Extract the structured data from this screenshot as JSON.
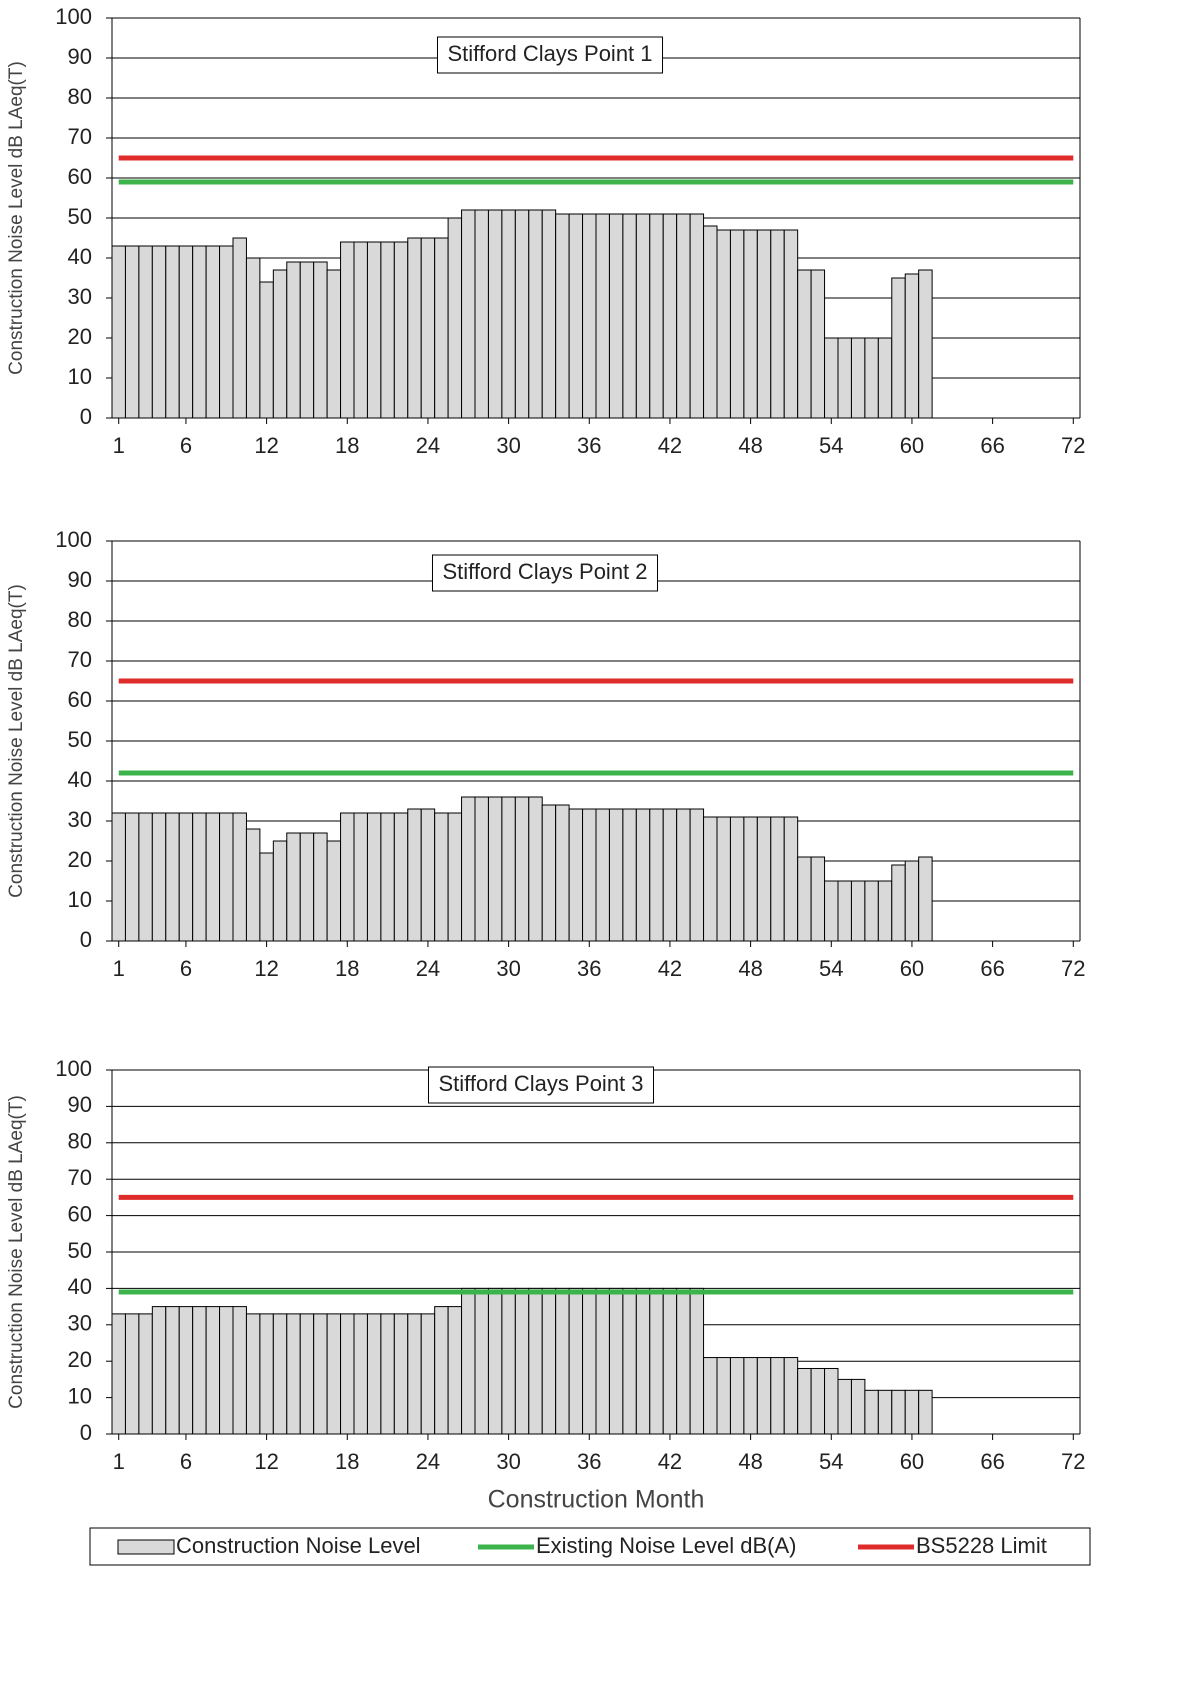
{
  "chart_data": [
    {
      "type": "bar",
      "title": "Stifford Clays Point 1",
      "y_label": "Construction Noise Level dB LAeq(T)",
      "x": [
        1,
        2,
        3,
        4,
        5,
        6,
        7,
        8,
        9,
        10,
        11,
        12,
        13,
        14,
        15,
        16,
        17,
        18,
        19,
        20,
        21,
        22,
        23,
        24,
        25,
        26,
        27,
        28,
        29,
        30,
        31,
        32,
        33,
        34,
        35,
        36,
        37,
        38,
        39,
        40,
        41,
        42,
        43,
        44,
        45,
        46,
        47,
        48,
        49,
        50,
        51,
        52,
        53,
        54,
        55,
        56,
        57,
        58,
        59,
        60,
        61,
        62,
        63,
        64,
        65,
        66,
        67,
        68,
        69,
        70,
        71,
        72
      ],
      "xlim": [
        0.5,
        72.5
      ],
      "xticks": [
        1,
        6,
        12,
        18,
        24,
        30,
        36,
        42,
        48,
        54,
        60,
        66,
        72
      ],
      "ylim": [
        0,
        100
      ],
      "yticks": [
        0,
        10,
        20,
        30,
        40,
        50,
        60,
        70,
        80,
        90,
        100
      ],
      "grid": true,
      "series": [
        {
          "type": "bar",
          "color": "#d9d9d9",
          "values": [
            43,
            43,
            43,
            43,
            43,
            43,
            43,
            43,
            43,
            45,
            40,
            34,
            37,
            39,
            39,
            39,
            37,
            44,
            44,
            44,
            44,
            44,
            45,
            45,
            45,
            50,
            52,
            52,
            52,
            52,
            52,
            52,
            52,
            51,
            51,
            51,
            51,
            51,
            51,
            51,
            51,
            51,
            51,
            51,
            48,
            47,
            47,
            47,
            47,
            47,
            47,
            37,
            37,
            20,
            20,
            20,
            20,
            20,
            35,
            36,
            37,
            0,
            0,
            0,
            0,
            0,
            0,
            0,
            0,
            0,
            0,
            0
          ]
        },
        {
          "type": "line",
          "color": "#3cb44b",
          "x": [
            1,
            72
          ],
          "values": [
            59,
            59
          ]
        },
        {
          "type": "line",
          "color": "#e02b2b",
          "x": [
            1,
            72
          ],
          "values": [
            65,
            65
          ]
        }
      ]
    },
    {
      "type": "bar",
      "title": "Stifford Clays Point 2",
      "y_label": "Construction Noise Level dB LAeq(T)",
      "x": [
        1,
        2,
        3,
        4,
        5,
        6,
        7,
        8,
        9,
        10,
        11,
        12,
        13,
        14,
        15,
        16,
        17,
        18,
        19,
        20,
        21,
        22,
        23,
        24,
        25,
        26,
        27,
        28,
        29,
        30,
        31,
        32,
        33,
        34,
        35,
        36,
        37,
        38,
        39,
        40,
        41,
        42,
        43,
        44,
        45,
        46,
        47,
        48,
        49,
        50,
        51,
        52,
        53,
        54,
        55,
        56,
        57,
        58,
        59,
        60,
        61,
        62,
        63,
        64,
        65,
        66,
        67,
        68,
        69,
        70,
        71,
        72
      ],
      "xlim": [
        0.5,
        72.5
      ],
      "xticks": [
        1,
        6,
        12,
        18,
        24,
        30,
        36,
        42,
        48,
        54,
        60,
        66,
        72
      ],
      "ylim": [
        0,
        100
      ],
      "yticks": [
        0,
        10,
        20,
        30,
        40,
        50,
        60,
        70,
        80,
        90,
        100
      ],
      "grid": true,
      "series": [
        {
          "type": "bar",
          "color": "#d9d9d9",
          "values": [
            32,
            32,
            32,
            32,
            32,
            32,
            32,
            32,
            32,
            32,
            28,
            22,
            25,
            27,
            27,
            27,
            25,
            32,
            32,
            32,
            32,
            32,
            33,
            33,
            32,
            32,
            36,
            36,
            36,
            36,
            36,
            36,
            34,
            34,
            33,
            33,
            33,
            33,
            33,
            33,
            33,
            33,
            33,
            33,
            31,
            31,
            31,
            31,
            31,
            31,
            31,
            21,
            21,
            15,
            15,
            15,
            15,
            15,
            19,
            20,
            21,
            0,
            0,
            0,
            0,
            0,
            0,
            0,
            0,
            0,
            0,
            0
          ]
        },
        {
          "type": "line",
          "color": "#3cb44b",
          "x": [
            1,
            72
          ],
          "values": [
            42,
            42
          ]
        },
        {
          "type": "line",
          "color": "#e02b2b",
          "x": [
            1,
            72
          ],
          "values": [
            65,
            65
          ]
        }
      ]
    },
    {
      "type": "bar",
      "title": "Stifford Clays Point 3",
      "y_label": "Construction Noise Level dB LAeq(T)",
      "x_label": "Construction Month",
      "x": [
        1,
        2,
        3,
        4,
        5,
        6,
        7,
        8,
        9,
        10,
        11,
        12,
        13,
        14,
        15,
        16,
        17,
        18,
        19,
        20,
        21,
        22,
        23,
        24,
        25,
        26,
        27,
        28,
        29,
        30,
        31,
        32,
        33,
        34,
        35,
        36,
        37,
        38,
        39,
        40,
        41,
        42,
        43,
        44,
        45,
        46,
        47,
        48,
        49,
        50,
        51,
        52,
        53,
        54,
        55,
        56,
        57,
        58,
        59,
        60,
        61,
        62,
        63,
        64,
        65,
        66,
        67,
        68,
        69,
        70,
        71,
        72
      ],
      "xlim": [
        0.5,
        72.5
      ],
      "xticks": [
        1,
        6,
        12,
        18,
        24,
        30,
        36,
        42,
        48,
        54,
        60,
        66,
        72
      ],
      "ylim": [
        0,
        100
      ],
      "yticks": [
        0,
        10,
        20,
        30,
        40,
        50,
        60,
        70,
        80,
        90,
        100
      ],
      "grid": true,
      "legend": "below",
      "series": [
        {
          "name": "Construction Noise Level",
          "type": "bar",
          "color": "#d9d9d9",
          "values": [
            33,
            33,
            33,
            35,
            35,
            35,
            35,
            35,
            35,
            35,
            33,
            33,
            33,
            33,
            33,
            33,
            33,
            33,
            33,
            33,
            33,
            33,
            33,
            33,
            35,
            35,
            40,
            40,
            40,
            40,
            40,
            40,
            40,
            40,
            40,
            40,
            40,
            40,
            40,
            40,
            40,
            40,
            40,
            40,
            21,
            21,
            21,
            21,
            21,
            21,
            21,
            18,
            18,
            18,
            15,
            15,
            12,
            12,
            12,
            12,
            12,
            0,
            0,
            0,
            0,
            0,
            0,
            0,
            0,
            0,
            0,
            0
          ]
        },
        {
          "name": "Existing Noise Level dB(A)",
          "type": "line",
          "color": "#3cb44b",
          "x": [
            1,
            72
          ],
          "values": [
            39,
            39
          ]
        },
        {
          "name": "BS5228 Limit",
          "type": "line",
          "color": "#e02b2b",
          "x": [
            1,
            72
          ],
          "values": [
            65,
            65
          ]
        }
      ]
    }
  ]
}
